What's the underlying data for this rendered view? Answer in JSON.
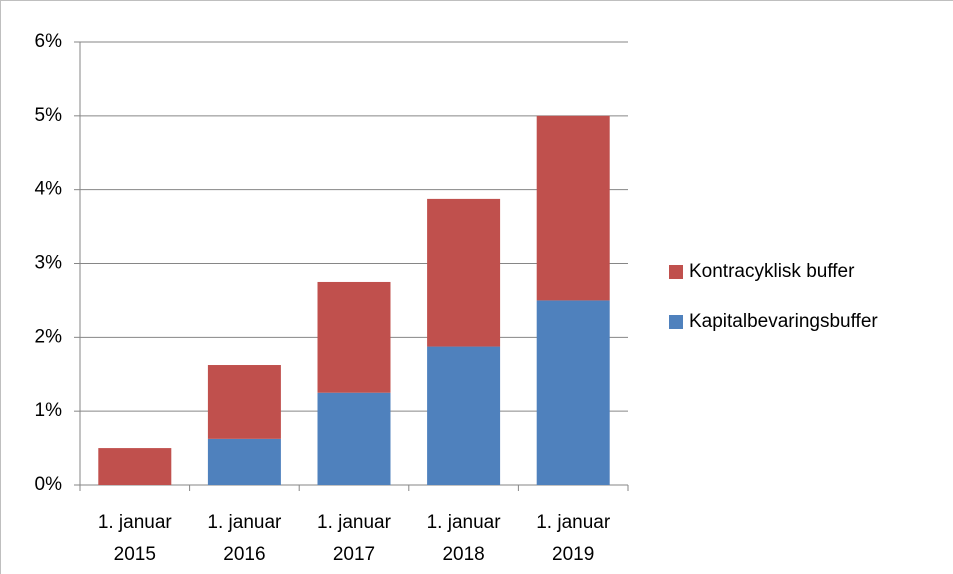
{
  "chart_data": {
    "type": "stacked-bar",
    "categories": [
      "1. januar 2015",
      "1. januar 2016",
      "1. januar 2017",
      "1. januar 2018",
      "1. januar 2019"
    ],
    "series": [
      {
        "name": "Kapitalbevaringsbuffer",
        "color": "#4f81bd",
        "values": [
          0,
          0.625,
          1.25,
          1.875,
          2.5
        ]
      },
      {
        "name": "Kontracyklisk buffer",
        "color": "#c0504d",
        "values": [
          0.5,
          1.0,
          1.5,
          2.0,
          2.5
        ]
      }
    ],
    "ylim": [
      0,
      6
    ],
    "yticks": [
      {
        "value": 0,
        "label": "0%"
      },
      {
        "value": 1,
        "label": "1%"
      },
      {
        "value": 2,
        "label": "2%"
      },
      {
        "value": 3,
        "label": "3%"
      },
      {
        "value": 4,
        "label": "4%"
      },
      {
        "value": 5,
        "label": "5%"
      },
      {
        "value": 6,
        "label": "6%"
      }
    ],
    "grid": true,
    "legend": "right"
  }
}
